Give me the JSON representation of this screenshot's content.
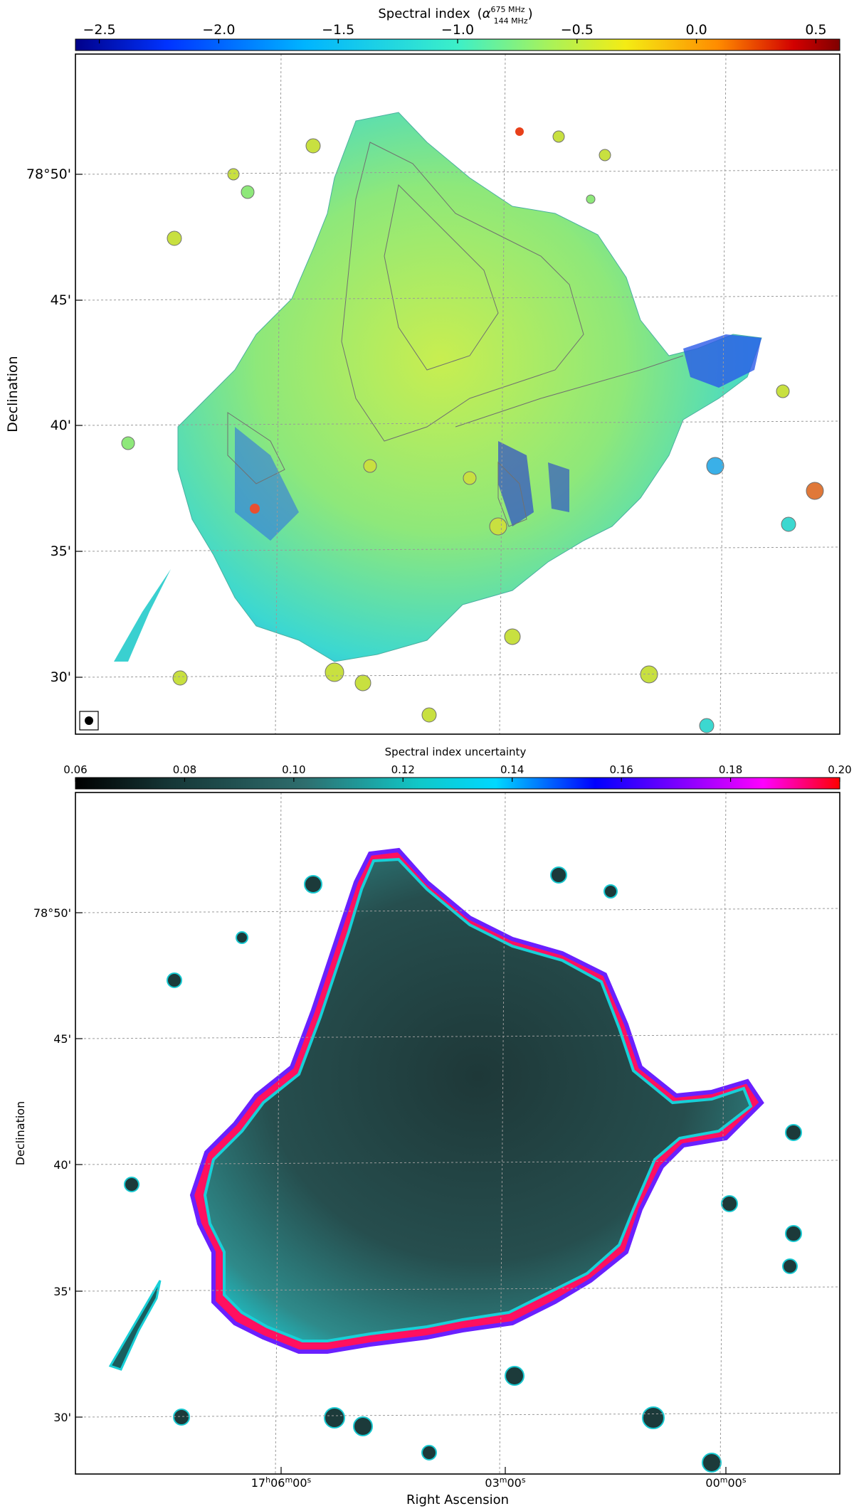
{
  "top_panel": {
    "colorbar": {
      "title_main": "Spectral index",
      "title_symbol": "α",
      "title_sup": "675 MHz",
      "title_sub": "144 MHz",
      "ticks": [
        "−2.5",
        "−2.0",
        "−1.5",
        "−1.0",
        "−0.5",
        "0.0",
        "0.5"
      ],
      "range": [
        -2.6,
        0.6
      ],
      "tick_values": [
        -2.5,
        -2.0,
        -1.5,
        -1.0,
        -0.5,
        0.0,
        0.5
      ]
    },
    "ylabel": "Declination",
    "yticks": [
      "78°50'",
      "45'",
      "40'",
      "35'",
      "30'"
    ]
  },
  "bottom_panel": {
    "colorbar": {
      "title": "Spectral index uncertainty",
      "ticks": [
        "0.06",
        "0.08",
        "0.10",
        "0.12",
        "0.14",
        "0.16",
        "0.18",
        "0.20"
      ],
      "range": [
        0.06,
        0.2
      ],
      "tick_values": [
        0.06,
        0.08,
        0.1,
        0.12,
        0.14,
        0.16,
        0.18,
        0.2
      ]
    },
    "ylabel": "Declination",
    "yticks": [
      "78°50'",
      "45'",
      "40'",
      "35'",
      "30'"
    ],
    "xlabel": "Right Ascension",
    "xticks": [
      {
        "h": "17",
        "m": "06",
        "s": "00",
        "full": true
      },
      {
        "m": "03",
        "s": "00",
        "full": false
      },
      {
        "m": "00",
        "s": "00",
        "full": false
      }
    ]
  },
  "colors": {
    "index_map": [
      "#00008a",
      "#0033ff",
      "#00b4ff",
      "#3cf0c8",
      "#a8f25a",
      "#f4ec14",
      "#ff8c00",
      "#d20000",
      "#800000"
    ],
    "uncertainty_map": [
      "#000000",
      "#153535",
      "#2e6e6e",
      "#10c8c8",
      "#00d8ff",
      "#0000ff",
      "#8a00ff",
      "#ff00ff",
      "#ff0000"
    ]
  }
}
